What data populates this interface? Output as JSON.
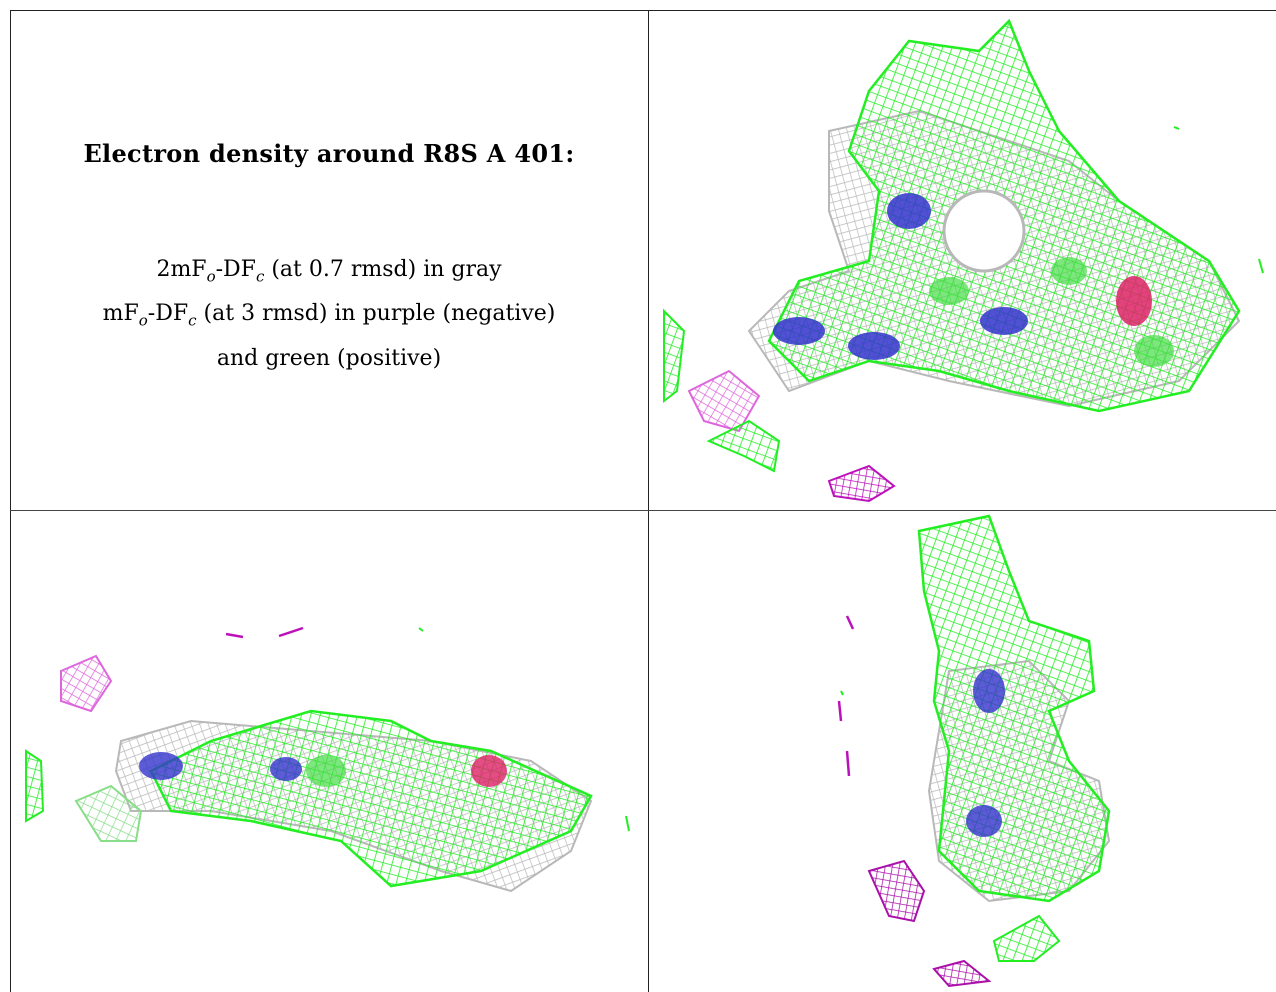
{
  "caption": {
    "title": "Electron density around R8S A 401:",
    "line1_prefix": "2mF",
    "line1_sub1": "o",
    "line1_mid": "-DF",
    "line1_sub2": "c",
    "line1_suffix": " (at 0.7 rmsd) in gray",
    "line2_prefix": "mF",
    "line2_sub1": "o",
    "line2_mid": "-DF",
    "line2_sub2": "c",
    "line2_suffix": " (at 3 rmsd) in purple (negative)",
    "line3": "and green (positive)"
  },
  "colors": {
    "gray_mesh": "#b8b8b8",
    "green_mesh": "#22ee22",
    "purple_mesh": "#cc22cc",
    "light_purple_mesh": "#dd66dd",
    "nitrogen_atom": "#3333cc",
    "oxygen_atom": "#dd2266",
    "carbon_atom": "#44dd44"
  },
  "panels": [
    {
      "view": "top-right",
      "content": "density-view-1"
    },
    {
      "view": "bottom-left",
      "content": "density-view-2"
    },
    {
      "view": "bottom-right",
      "content": "density-view-3"
    }
  ]
}
